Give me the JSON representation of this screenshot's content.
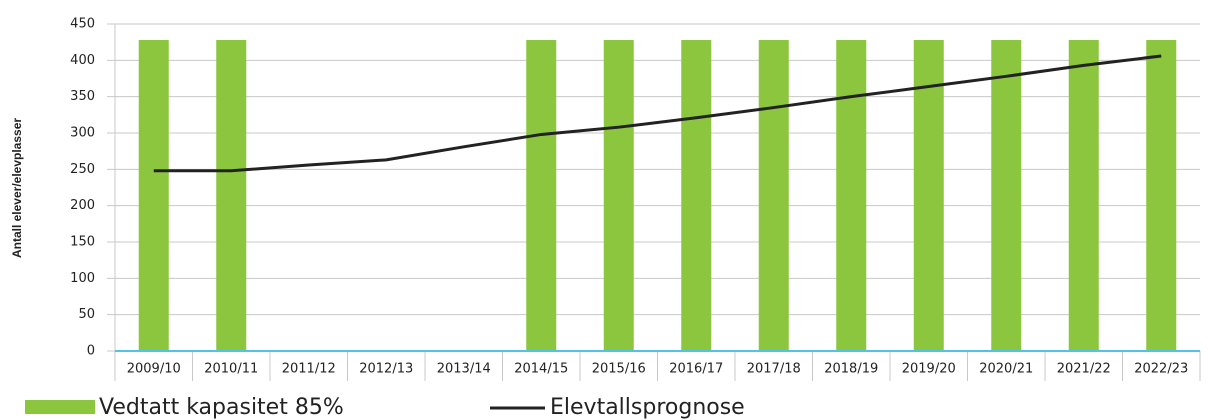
{
  "chart_data": {
    "type": "bar",
    "y_label": "Antall elever/elevplasser",
    "categories": [
      "2009/10",
      "2010/11",
      "2011/12",
      "2012/13",
      "2013/14",
      "2014/15",
      "2015/16",
      "2016/17",
      "2017/18",
      "2018/19",
      "2019/20",
      "2020/21",
      "2021/22",
      "2022/23"
    ],
    "series": [
      {
        "name": "Vedtatt kapasitet 85%",
        "type": "bar",
        "color": "#8cc63f",
        "values": [
          428,
          428,
          null,
          null,
          null,
          428,
          428,
          428,
          428,
          428,
          428,
          428,
          428,
          428
        ]
      },
      {
        "name": "Elevtallsprognose",
        "type": "line",
        "color": "#222222",
        "values": [
          248,
          248,
          256,
          263,
          281,
          298,
          308,
          321,
          335,
          350,
          364,
          378,
          393,
          406
        ]
      }
    ],
    "ylim": [
      0,
      450
    ],
    "yticks": [
      0,
      50,
      100,
      150,
      200,
      250,
      300,
      350,
      400,
      450
    ],
    "grid": true
  }
}
